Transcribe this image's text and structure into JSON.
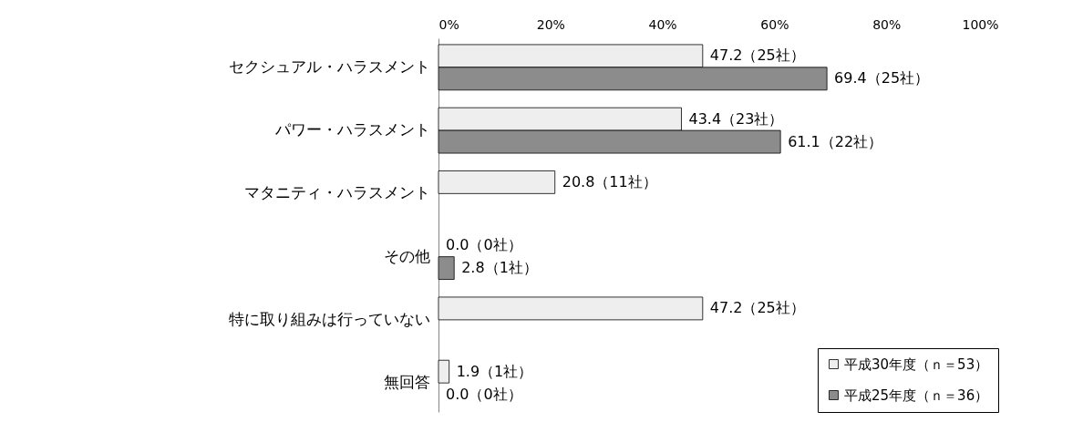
{
  "chart_data": {
    "type": "bar",
    "orientation": "horizontal",
    "categories": [
      "セクシュアル・ハラスメント",
      "パワー・ハラスメント",
      "マタニティ・ハラスメント",
      "その他",
      "特に取り組みは行っていない",
      "無回答"
    ],
    "series": [
      {
        "name": "平成30年度（ｎ＝53）",
        "color": "#eeeeee",
        "values": [
          47.2,
          43.4,
          20.8,
          0.0,
          47.2,
          1.9
        ],
        "value_labels": [
          "47.2（25社）",
          "43.4（23社）",
          "20.8（11社）",
          "0.0（0社）",
          "47.2（25社）",
          "1.9（1社）"
        ]
      },
      {
        "name": "平成25年度（ｎ＝36）",
        "color": "#8c8c8c",
        "values": [
          69.4,
          61.1,
          null,
          2.8,
          null,
          0.0
        ],
        "value_labels": [
          "69.4（25社）",
          "61.1（22社）",
          null,
          "2.8（1社）",
          null,
          "0.0（0社）"
        ]
      }
    ],
    "xlim": [
      0,
      100
    ],
    "xticks": [
      {
        "value": 0,
        "label": "0%"
      },
      {
        "value": 20,
        "label": "20%"
      },
      {
        "value": 40,
        "label": "40%"
      },
      {
        "value": 60,
        "label": "60%"
      },
      {
        "value": 80,
        "label": "80%"
      },
      {
        "value": 100,
        "label": "100%"
      }
    ],
    "grid": false,
    "legend": "bottom right"
  }
}
